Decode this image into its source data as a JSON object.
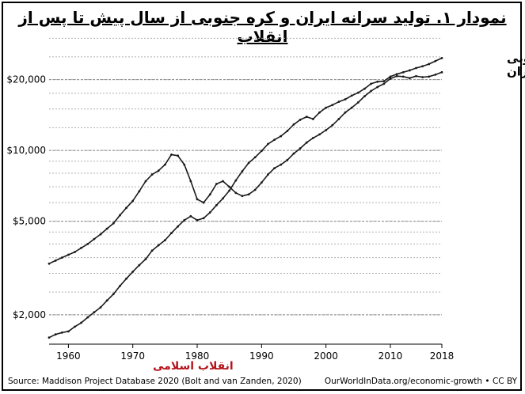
{
  "chart_data": {
    "type": "line",
    "title": "نمودار ۱. تولید سرانه ایران و کره جنوبی از سال پیش تا پس از انقلاب",
    "xlabel": "",
    "ylabel": "",
    "xlim": [
      1957,
      2018
    ],
    "ylim": [
      1500,
      32000
    ],
    "y_scale": "log",
    "x_ticks": [
      "1960",
      "1970",
      "1980",
      "1990",
      "2000",
      "2010",
      "2018"
    ],
    "y_ticks": [
      {
        "value": 2000,
        "label": "$2,000"
      },
      {
        "value": 5000,
        "label": "$5,000"
      },
      {
        "value": 10000,
        "label": "$10,000"
      },
      {
        "value": 20000,
        "label": "$20,000"
      }
    ],
    "series": [
      {
        "name": "ایران",
        "x": [
          1957,
          1958,
          1959,
          1960,
          1961,
          1962,
          1963,
          1964,
          1965,
          1966,
          1967,
          1968,
          1969,
          1970,
          1971,
          1972,
          1973,
          1974,
          1975,
          1976,
          1977,
          1978,
          1979,
          1980,
          1981,
          1982,
          1983,
          1984,
          1985,
          1986,
          1987,
          1988,
          1989,
          1990,
          1991,
          1992,
          1993,
          1994,
          1995,
          1996,
          1997,
          1998,
          1999,
          2000,
          2001,
          2002,
          2003,
          2004,
          2005,
          2006,
          2007,
          2008,
          2009,
          2010,
          2011,
          2012,
          2013,
          2014,
          2015,
          2016,
          2017,
          2018
        ],
        "values": [
          3300,
          3400,
          3500,
          3600,
          3700,
          3850,
          4000,
          4200,
          4400,
          4650,
          4900,
          5300,
          5700,
          6100,
          6700,
          7400,
          7900,
          8200,
          8700,
          9600,
          9500,
          8700,
          7400,
          6200,
          6000,
          6500,
          7200,
          7400,
          7000,
          6600,
          6400,
          6500,
          6800,
          7300,
          7900,
          8400,
          8700,
          9100,
          9700,
          10200,
          10800,
          11300,
          11700,
          12200,
          12800,
          13600,
          14500,
          15200,
          16000,
          17000,
          17900,
          18600,
          19200,
          20200,
          20700,
          20600,
          20300,
          20700,
          20500,
          20600,
          21000,
          21500
        ]
      },
      {
        "name": "کره جنوبی",
        "x": [
          1957,
          1958,
          1959,
          1960,
          1961,
          1962,
          1963,
          1964,
          1965,
          1966,
          1967,
          1968,
          1969,
          1970,
          1971,
          1972,
          1973,
          1974,
          1975,
          1976,
          1977,
          1978,
          1979,
          1980,
          1981,
          1982,
          1983,
          1984,
          1985,
          1986,
          1987,
          1988,
          1989,
          1990,
          1991,
          1992,
          1993,
          1994,
          1995,
          1996,
          1997,
          1998,
          1999,
          2000,
          2001,
          2002,
          2003,
          2004,
          2005,
          2006,
          2007,
          2008,
          2009,
          2010,
          2011,
          2012,
          2013,
          2014,
          2015,
          2016,
          2017,
          2018
        ],
        "values": [
          1600,
          1650,
          1680,
          1700,
          1780,
          1850,
          1950,
          2050,
          2150,
          2300,
          2450,
          2650,
          2850,
          3050,
          3250,
          3450,
          3750,
          3950,
          4150,
          4450,
          4750,
          5050,
          5250,
          5050,
          5150,
          5450,
          5850,
          6250,
          6750,
          7450,
          8150,
          8850,
          9350,
          9950,
          10650,
          11100,
          11500,
          12100,
          12900,
          13500,
          13900,
          13600,
          14500,
          15200,
          15600,
          16100,
          16500,
          17100,
          17600,
          18300,
          19200,
          19600,
          19700,
          20600,
          21100,
          21500,
          21900,
          22400,
          22800,
          23300,
          24000,
          24700
        ]
      }
    ],
    "annotations": [
      {
        "text": "انقلاب اسلامی",
        "x": 1979,
        "color": "#b5121b"
      }
    ],
    "grid": "horizontal dotted",
    "colors": {
      "line": "#1a1a1a",
      "grid": "#b0b0b0",
      "annotation": "#b5121b"
    }
  },
  "footer": {
    "source": "Source: Maddison Project Database 2020 (Bolt and van Zanden, 2020)",
    "credit": "OurWorldInData.org/economic-growth • CC BY"
  }
}
